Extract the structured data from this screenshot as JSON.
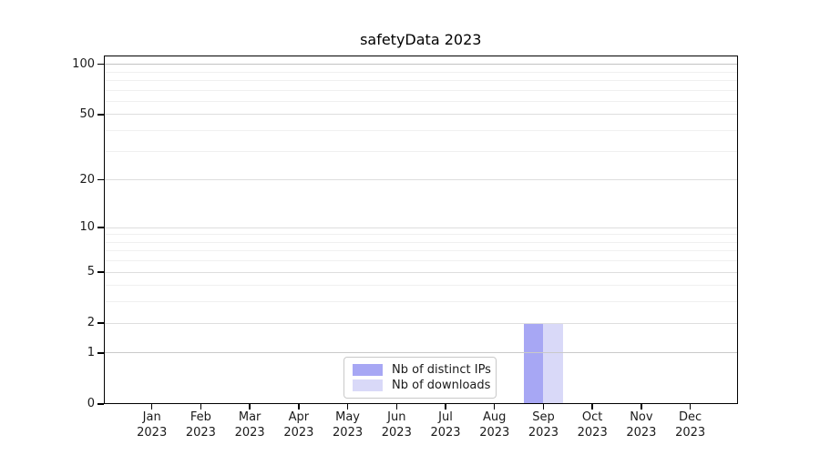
{
  "chart_data": {
    "type": "bar",
    "title": "safetyData 2023",
    "year_label": "2023",
    "categories": [
      "Jan",
      "Feb",
      "Mar",
      "Apr",
      "May",
      "Jun",
      "Jul",
      "Aug",
      "Sep",
      "Oct",
      "Nov",
      "Dec"
    ],
    "series": [
      {
        "name": "Nb of distinct IPs",
        "color": "#a7a7f4",
        "values": [
          0,
          0,
          0,
          0,
          0,
          0,
          0,
          0,
          2,
          0,
          0,
          0
        ]
      },
      {
        "name": "Nb of downloads",
        "color": "#d9d9f8",
        "values": [
          0,
          0,
          0,
          0,
          0,
          0,
          0,
          0,
          2,
          0,
          0,
          0
        ]
      }
    ],
    "yscale": "log1p",
    "ylim": [
      0,
      100
    ],
    "y_major_ticks": [
      0,
      1,
      2,
      5,
      10,
      20,
      50,
      100
    ],
    "y_minor_gridlines": [
      3,
      4,
      6,
      7,
      8,
      9,
      30,
      40,
      60,
      70,
      80,
      90
    ],
    "grid": "horizontal",
    "legend": {
      "position": "inside-bottom-center",
      "items": [
        "Nb of distinct IPs",
        "Nb of downloads"
      ]
    },
    "colors": {
      "grid_minor": "#f0f0f0",
      "grid_major": "#dedede",
      "grid_major_dark": "#c2c2c2",
      "spine": "#000000",
      "text": "#1a1a1a"
    }
  }
}
